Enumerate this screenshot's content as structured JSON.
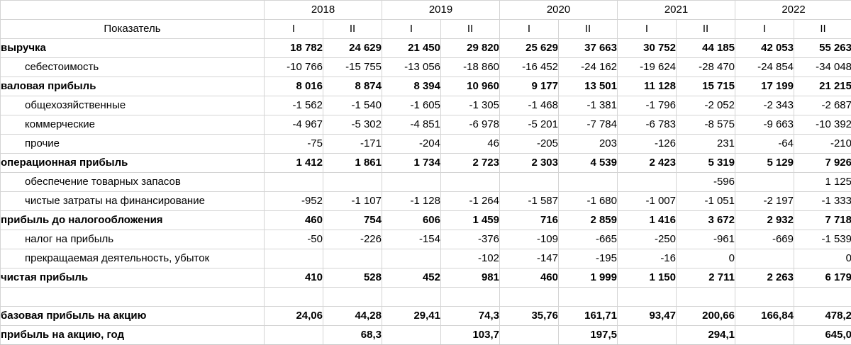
{
  "header": {
    "indicator_label": "Показатель",
    "years": [
      "2018",
      "2019",
      "2020",
      "2021",
      "2022"
    ],
    "half_labels": [
      "I",
      "II"
    ]
  },
  "rows": [
    {
      "label": "выручка",
      "style": "bold",
      "values": [
        "18 782",
        "24 629",
        "21 450",
        "29 820",
        "25 629",
        "37 663",
        "30 752",
        "44 185",
        "42 053",
        "55 263"
      ]
    },
    {
      "label": "себестоимость",
      "style": "indent",
      "values": [
        "-10 766",
        "-15 755",
        "-13 056",
        "-18 860",
        "-16 452",
        "-24 162",
        "-19 624",
        "-28 470",
        "-24 854",
        "-34 048"
      ]
    },
    {
      "label": "валовая прибыль",
      "style": "bold",
      "values": [
        "8 016",
        "8 874",
        "8 394",
        "10 960",
        "9 177",
        "13 501",
        "11 128",
        "15 715",
        "17 199",
        "21 215"
      ]
    },
    {
      "label": "общехозяйственные",
      "style": "indent",
      "values": [
        "-1 562",
        "-1 540",
        "-1 605",
        "-1 305",
        "-1 468",
        "-1 381",
        "-1 796",
        "-2 052",
        "-2 343",
        "-2 687"
      ]
    },
    {
      "label": "коммерческие",
      "style": "indent",
      "values": [
        "-4 967",
        "-5 302",
        "-4 851",
        "-6 978",
        "-5 201",
        "-7 784",
        "-6 783",
        "-8 575",
        "-9 663",
        "-10 392"
      ]
    },
    {
      "label": "прочие",
      "style": "indent",
      "values": [
        "-75",
        "-171",
        "-204",
        "46",
        "-205",
        "203",
        "-126",
        "231",
        "-64",
        "-210"
      ]
    },
    {
      "label": "операционная прибыль",
      "style": "bold",
      "values": [
        "1 412",
        "1 861",
        "1 734",
        "2 723",
        "2 303",
        "4 539",
        "2 423",
        "5 319",
        "5 129",
        "7 926"
      ]
    },
    {
      "label": "обеспечение товарных запасов",
      "style": "indent",
      "values": [
        "",
        "",
        "",
        "",
        "",
        "",
        "",
        "-596",
        "",
        "1 125"
      ]
    },
    {
      "label": "чистые затраты на финансирование",
      "style": "indent",
      "values": [
        "-952",
        "-1 107",
        "-1 128",
        "-1 264",
        "-1 587",
        "-1 680",
        "-1 007",
        "-1 051",
        "-2 197",
        "-1 333"
      ]
    },
    {
      "label": "прибыль до налогообложения",
      "style": "bold",
      "values": [
        "460",
        "754",
        "606",
        "1 459",
        "716",
        "2 859",
        "1 416",
        "3 672",
        "2 932",
        "7 718"
      ]
    },
    {
      "label": "налог на прибыль",
      "style": "indent",
      "values": [
        "-50",
        "-226",
        "-154",
        "-376",
        "-109",
        "-665",
        "-250",
        "-961",
        "-669",
        "-1 539"
      ]
    },
    {
      "label": "прекращаемая деятельность, убыток",
      "style": "indent",
      "values": [
        "",
        "",
        "",
        "-102",
        "-147",
        "-195",
        "-16",
        "0",
        "",
        "0"
      ]
    },
    {
      "label": "чистая прибыль",
      "style": "bold",
      "values": [
        "410",
        "528",
        "452",
        "981",
        "460",
        "1 999",
        "1 150",
        "2 711",
        "2 263",
        "6 179"
      ]
    },
    {
      "label": "",
      "style": "spacer",
      "values": [
        "",
        "",
        "",
        "",
        "",
        "",
        "",
        "",
        "",
        ""
      ]
    },
    {
      "label": "базовая прибыль на акцию",
      "style": "bold",
      "values": [
        "24,06",
        "44,28",
        "29,41",
        "74,3",
        "35,76",
        "161,71",
        "93,47",
        "200,66",
        "166,84",
        "478,2"
      ]
    },
    {
      "label": "прибыль на акцию, год",
      "style": "bold",
      "values": [
        "",
        "68,3",
        "",
        "103,7",
        "",
        "197,5",
        "",
        "294,1",
        "",
        "645,0"
      ]
    }
  ],
  "colors": {
    "gridline": "#d4d4d4",
    "text": "#000000",
    "background": "#ffffff"
  }
}
